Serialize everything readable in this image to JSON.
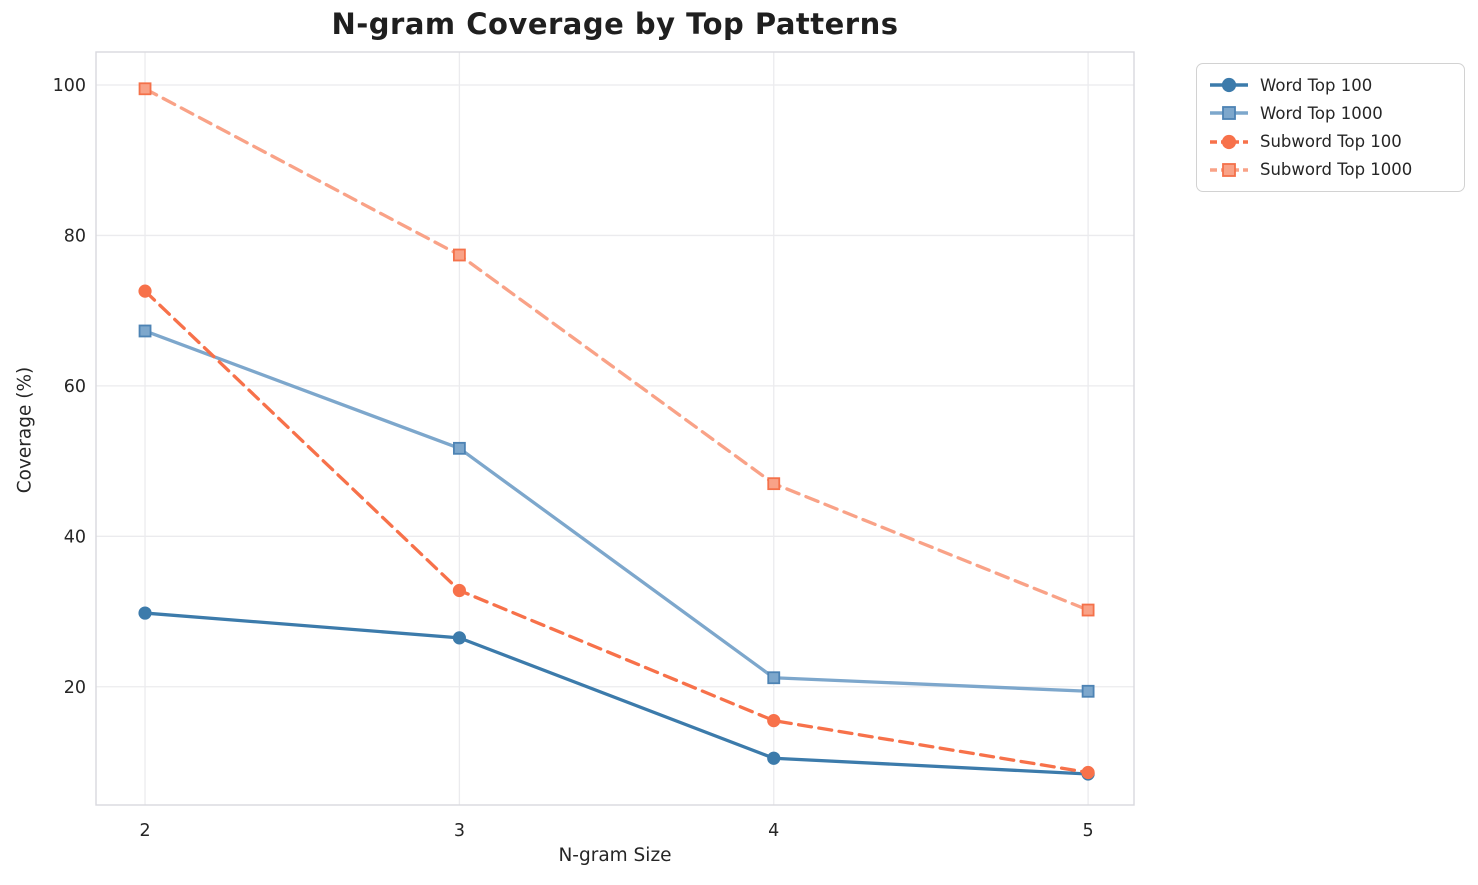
{
  "chart_data": {
    "type": "line",
    "title": "N-gram Coverage by Top Patterns",
    "xlabel": "N-gram Size",
    "ylabel": "Coverage (%)",
    "x": [
      2,
      3,
      4,
      5
    ],
    "x_tick_labels": [
      "2",
      "3",
      "4",
      "5"
    ],
    "y_ticks": [
      20,
      40,
      60,
      80,
      100
    ],
    "y_tick_labels": [
      "20",
      "40",
      "60",
      "80",
      "100"
    ],
    "xlim": [
      1.844,
      5.146
    ],
    "ylim": [
      4.28,
      104.39
    ],
    "grid": true,
    "legend_position": "outside-upper-right",
    "series": [
      {
        "name": "Word Top 100",
        "values": [
          29.8,
          26.5,
          10.5,
          8.4
        ],
        "color": "#3c7bab",
        "marker_edge": "#3c7bab",
        "line_style": "solid",
        "marker": "circle"
      },
      {
        "name": "Word Top 1000",
        "values": [
          67.3,
          51.7,
          21.2,
          19.4
        ],
        "color": "#7da7cc",
        "marker_edge": "#4d83b4",
        "line_style": "solid",
        "marker": "square"
      },
      {
        "name": "Subword Top 100",
        "values": [
          72.6,
          32.8,
          15.5,
          8.6
        ],
        "color": "#f7714a",
        "marker_edge": "#f7714a",
        "line_style": "dashed",
        "marker": "circle"
      },
      {
        "name": "Subword Top 1000",
        "values": [
          99.5,
          77.4,
          47.0,
          30.2
        ],
        "color": "#f9a287",
        "marker_edge": "#f4714a",
        "line_style": "dashed",
        "marker": "square"
      }
    ],
    "style": {
      "grid_color": "#ebebee",
      "border_color": "#d9d9de",
      "tick_label_color": "#262626",
      "title_color": "#1f1f1f"
    }
  }
}
